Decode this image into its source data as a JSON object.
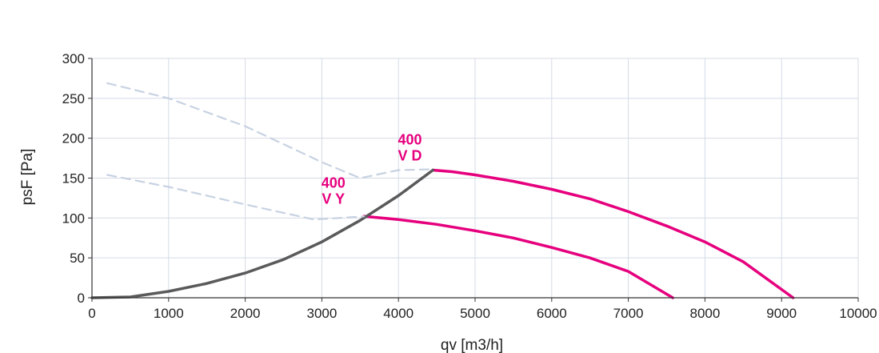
{
  "chart_data": {
    "type": "line",
    "xlabel": "qv [m3/h]",
    "ylabel": "psF [Pa]",
    "xlim": [
      0,
      10000
    ],
    "ylim": [
      0,
      300
    ],
    "x_ticks": [
      "0",
      "1000",
      "2000",
      "3000",
      "4000",
      "5000",
      "6000",
      "7000",
      "8000",
      "9000",
      "10000"
    ],
    "y_ticks": [
      "0",
      "50",
      "100",
      "150",
      "200",
      "250",
      "300"
    ],
    "grid": true,
    "colors": {
      "operating": "#e6007e",
      "system": "#5a5a5a",
      "dashed": "#c8d2e2",
      "grid": "#d4dbe6",
      "axis": "#333333"
    },
    "series": [
      {
        "style": "solid",
        "color_key": "operating",
        "x": [
          4450,
          4700,
          5000,
          5500,
          6000,
          6500,
          7000,
          7500,
          8000,
          8500,
          9150
        ],
        "y": [
          160,
          158,
          154,
          146,
          136,
          124,
          108,
          90,
          70,
          45,
          0
        ]
      },
      {
        "style": "solid",
        "color_key": "operating",
        "x": [
          3550,
          4000,
          4500,
          5000,
          5500,
          6000,
          6500,
          7000,
          7580
        ],
        "y": [
          102,
          98,
          92,
          84,
          75,
          63,
          50,
          33,
          0
        ]
      },
      {
        "style": "solid",
        "color_key": "system",
        "x": [
          0,
          500,
          1000,
          1500,
          2000,
          2500,
          3000,
          3500,
          4000,
          4450
        ],
        "y": [
          0,
          1,
          8,
          18,
          31,
          48,
          70,
          97,
          128,
          160
        ]
      },
      {
        "style": "dashed",
        "color_key": "dashed",
        "x": [
          200,
          1000,
          2000,
          3000,
          3500,
          4000,
          4450
        ],
        "y": [
          269,
          250,
          215,
          170,
          150,
          160,
          161
        ]
      },
      {
        "style": "dashed",
        "color_key": "dashed",
        "x": [
          200,
          1000,
          2000,
          2900,
          3550
        ],
        "y": [
          154,
          139,
          117,
          98,
          102
        ]
      }
    ],
    "annotations": [
      {
        "lines": [
          "400",
          "V D"
        ],
        "x": 4150,
        "y": 192
      },
      {
        "lines": [
          "400",
          "V Y"
        ],
        "x": 3150,
        "y": 138
      }
    ]
  }
}
